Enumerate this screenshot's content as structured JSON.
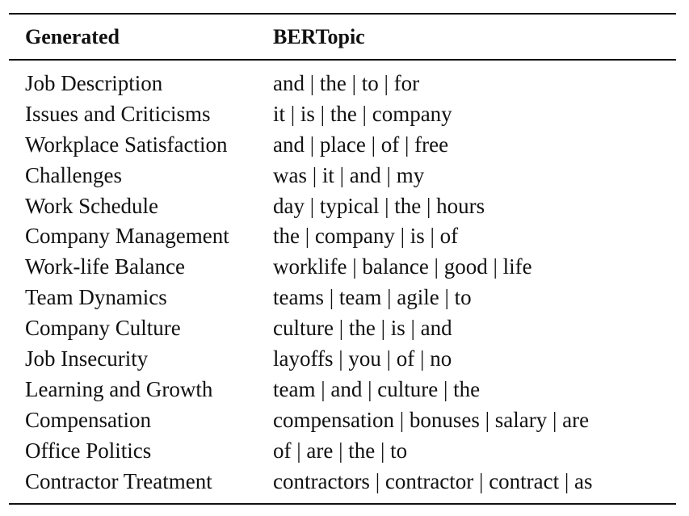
{
  "table": {
    "headers": [
      "Generated",
      "BERTopic"
    ],
    "rows": [
      [
        "Job Description",
        "and | the | to | for"
      ],
      [
        "Issues and Criticisms",
        "it | is | the | company"
      ],
      [
        "Workplace Satisfaction",
        "and | place | of | free"
      ],
      [
        "Challenges",
        "was | it | and | my"
      ],
      [
        "Work Schedule",
        "day | typical | the | hours"
      ],
      [
        "Company Management",
        "the | company | is | of"
      ],
      [
        "Work-life Balance",
        "worklife | balance | good | life"
      ],
      [
        "Team Dynamics",
        "teams | team | agile | to"
      ],
      [
        "Company Culture",
        "culture | the | is | and"
      ],
      [
        "Job Insecurity",
        "layoffs | you | of | no"
      ],
      [
        "Learning and Growth",
        "team | and | culture | the"
      ],
      [
        "Compensation",
        "compensation | bonuses | salary | are"
      ],
      [
        "Office Politics",
        "of | are | the | to"
      ],
      [
        "Contractor Treatment",
        "contractors | contractor | contract | as"
      ]
    ]
  }
}
